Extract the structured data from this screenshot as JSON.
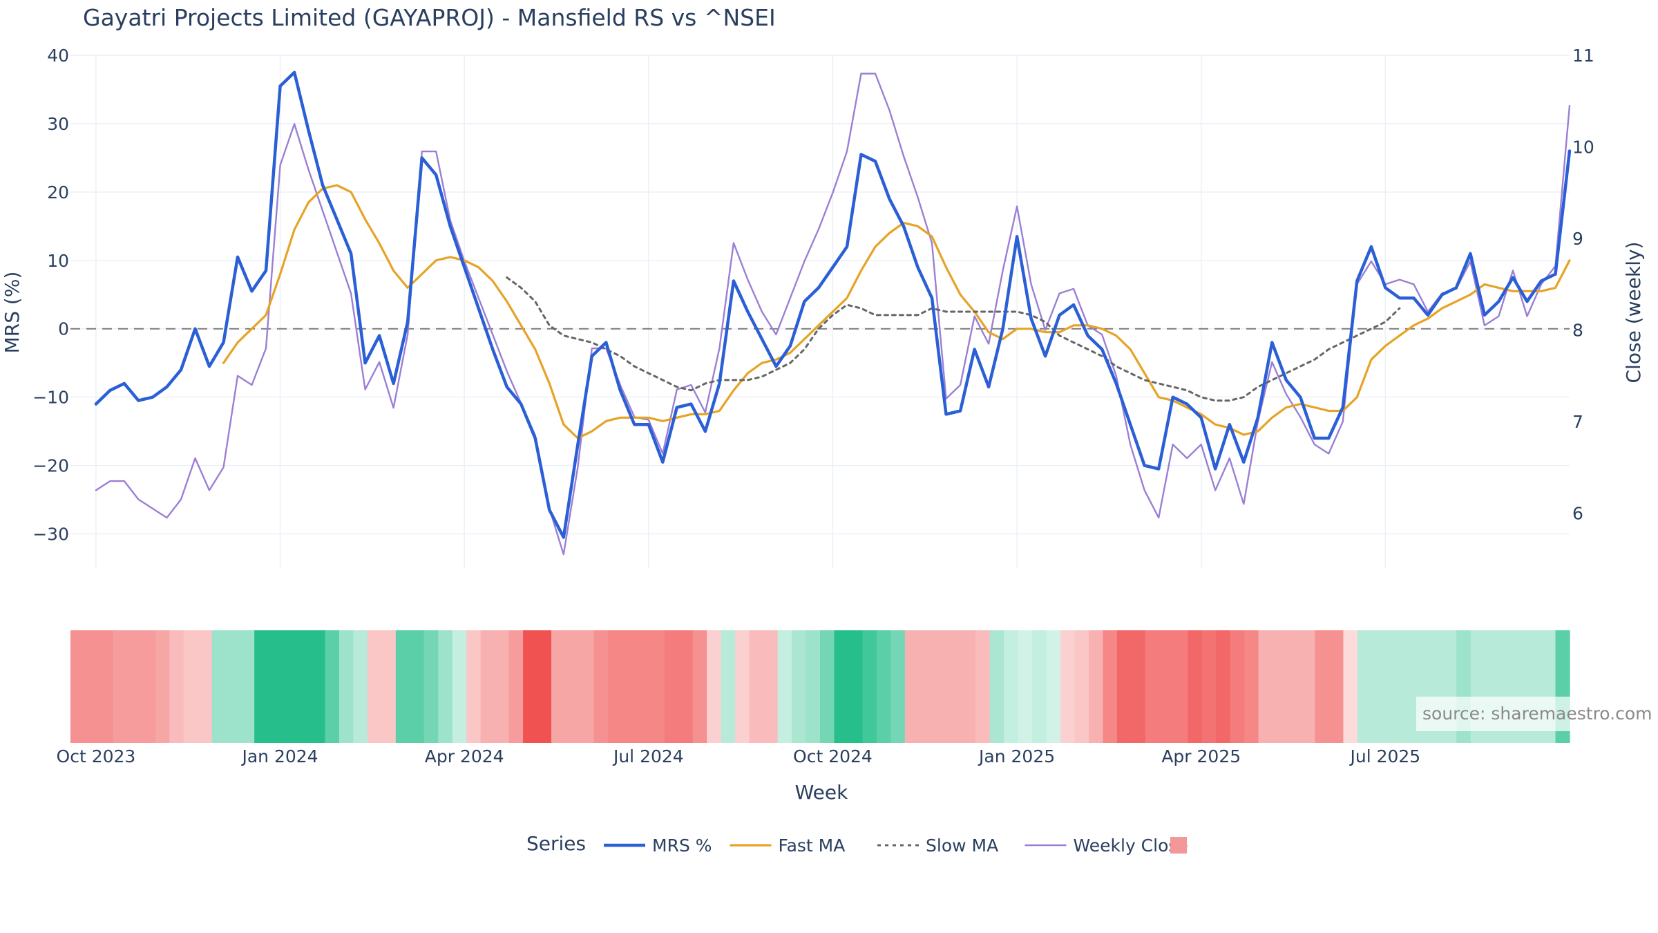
{
  "chart_data": {
    "type": "line",
    "title": "Gayatri Projects Limited (GAYAPROJ) - Mansfield RS vs ^NSEI",
    "xlabel": "Week",
    "ylabel_left": "MRS (%)",
    "ylabel_right": "Close (weekly)",
    "ylim_left": [
      -35,
      40
    ],
    "ylim_right": [
      5.4,
      11
    ],
    "yticks_left": [
      40,
      30,
      20,
      10,
      0,
      -10,
      -20,
      -30
    ],
    "yticks_left_labels": [
      "40",
      "30",
      "20",
      "10",
      "0",
      "−10",
      "−20",
      "−30"
    ],
    "yticks_right": [
      11,
      10,
      9,
      8,
      7,
      6
    ],
    "yticks_right_labels": [
      "11",
      "10",
      "9",
      "8",
      "7",
      "6"
    ],
    "x_ticks": [
      {
        "label": "Oct 2023",
        "week": 0
      },
      {
        "label": "Jan 2024",
        "week": 13
      },
      {
        "label": "Apr 2024",
        "week": 26
      },
      {
        "label": "Jul 2024",
        "week": 39
      },
      {
        "label": "Oct 2024",
        "week": 52
      },
      {
        "label": "Jan 2025",
        "week": 65
      },
      {
        "label": "Apr 2025",
        "week": 78
      },
      {
        "label": "Jul 2025",
        "week": 91
      }
    ],
    "x_range_weeks": [
      -1.8,
      104
    ],
    "grid": true,
    "zero_line": true,
    "legend_position": "bottom",
    "legend_title": "Series",
    "series": [
      {
        "name": "MRS %",
        "color": "#2b5fd6",
        "axis": "left",
        "values": [
          -11,
          -9,
          -8,
          -10.5,
          -10,
          -8.5,
          -6,
          0,
          -5.5,
          -2,
          10.5,
          5.5,
          8.5,
          35.5,
          37.5,
          29,
          21,
          16,
          11,
          -5,
          -1,
          -8,
          1,
          25,
          22.5,
          15,
          9,
          3,
          -3,
          -8.5,
          -11,
          -16,
          -26.5,
          -30.5,
          -17,
          -4,
          -2,
          -9,
          -14,
          -14,
          -19.5,
          -11.5,
          -11,
          -15,
          -8,
          7,
          2.5,
          -1.5,
          -5.5,
          -2.5,
          4,
          6,
          9,
          12,
          25.5,
          24.5,
          19,
          15,
          9,
          4.5,
          -12.5,
          -12,
          -3,
          -8.5,
          0,
          13.5,
          1.5,
          -4,
          2,
          3.5,
          -1,
          -3,
          -8,
          -14,
          -20,
          -20.5,
          -10,
          -11,
          -13,
          -20.5,
          -14,
          -19.5,
          -13,
          -2,
          -7.5,
          -10,
          -16,
          -16,
          -11.5,
          7,
          12,
          6,
          4.5,
          4.5,
          2,
          5,
          6,
          11,
          2,
          4,
          7.5,
          4,
          7,
          8,
          26
        ]
      },
      {
        "name": "Fast MA",
        "color": "#e6a325",
        "axis": "left",
        "values": [
          null,
          null,
          null,
          null,
          null,
          null,
          null,
          null,
          null,
          -5,
          -2,
          0,
          2,
          8,
          14.5,
          18.5,
          20.5,
          21,
          20,
          16,
          12.5,
          8.5,
          6,
          8,
          10,
          10.5,
          10,
          9,
          7,
          4,
          0.5,
          -3,
          -8,
          -14,
          -16,
          -15,
          -13.5,
          -13,
          -13,
          -13,
          -13.5,
          -13,
          -12.5,
          -12.5,
          -12,
          -9,
          -6.5,
          -5,
          -4.5,
          -3.5,
          -1.5,
          0.5,
          2.5,
          4.5,
          8.5,
          12,
          14,
          15.5,
          15,
          13.5,
          9,
          5,
          2.5,
          -0.5,
          -1.5,
          0,
          0,
          -0.5,
          -0.5,
          0.5,
          0.5,
          0,
          -1,
          -3,
          -6.5,
          -10,
          -10.5,
          -11.5,
          -12.5,
          -14,
          -14.5,
          -15.5,
          -15,
          -13,
          -11.5,
          -11,
          -11.5,
          -12,
          -12,
          -10,
          -4.5,
          -2.5,
          -1,
          0.5,
          1.5,
          3,
          4,
          5,
          6.5,
          6,
          5.5,
          5.5,
          5.5,
          6,
          10
        ]
      },
      {
        "name": "Slow MA",
        "color": "#666666",
        "axis": "left",
        "dash": "dotted",
        "values": [
          null,
          null,
          null,
          null,
          null,
          null,
          null,
          null,
          null,
          null,
          null,
          null,
          null,
          null,
          null,
          null,
          null,
          null,
          null,
          null,
          null,
          null,
          null,
          null,
          null,
          null,
          null,
          null,
          null,
          7.5,
          6,
          4,
          0.5,
          -1,
          -1.5,
          -2,
          -3,
          -4,
          -5.5,
          -6.5,
          -7.5,
          -8.5,
          -9,
          -8,
          -7.5,
          -7.5,
          -7.5,
          -7,
          -6,
          -5,
          -3,
          0,
          2,
          3.5,
          3,
          2,
          2,
          2,
          2,
          3,
          2.5,
          2.5,
          2.5,
          2.5,
          2.5,
          2.5,
          2,
          1,
          -1,
          -2,
          -3,
          -4,
          -5.5,
          -6.5,
          -7.5,
          -8,
          -8.5,
          -9,
          -10,
          -10.5,
          -10.5,
          -10,
          -8.5,
          -7.5,
          -6.5,
          -5.5,
          -4.5,
          -3,
          -2,
          -1,
          0,
          1,
          3
        ]
      },
      {
        "name": "Weekly Close",
        "color": "#9b7fd4",
        "axis": "right",
        "values": [
          6.25,
          6.35,
          6.35,
          6.15,
          6.05,
          5.95,
          6.15,
          6.6,
          6.25,
          6.5,
          7.5,
          7.4,
          7.8,
          9.8,
          10.25,
          9.75,
          9.3,
          8.85,
          8.4,
          7.35,
          7.65,
          7.15,
          7.95,
          9.95,
          9.95,
          9.2,
          8.75,
          8.35,
          7.95,
          7.55,
          7.2,
          6.85,
          6.05,
          5.55,
          6.5,
          7.8,
          7.8,
          7.4,
          7.05,
          7.02,
          6.65,
          7.35,
          7.4,
          7.1,
          7.8,
          8.95,
          8.55,
          8.2,
          7.95,
          8.35,
          8.75,
          9.1,
          9.5,
          9.95,
          10.8,
          10.8,
          10.4,
          9.9,
          9.45,
          8.95,
          7.25,
          7.4,
          8.15,
          7.85,
          8.65,
          9.35,
          8.5,
          8.0,
          8.4,
          8.45,
          8.05,
          7.95,
          7.5,
          6.75,
          6.25,
          5.95,
          6.75,
          6.6,
          6.75,
          6.25,
          6.6,
          6.1,
          7.0,
          7.65,
          7.3,
          7.05,
          6.75,
          6.65,
          7.0,
          8.5,
          8.75,
          8.5,
          8.55,
          8.5,
          8.2,
          8.4,
          8.45,
          8.75,
          8.05,
          8.15,
          8.65,
          8.15,
          8.5,
          8.7,
          10.45
        ]
      }
    ],
    "heatmap_strip": {
      "title": "",
      "values": [
        -8,
        -8,
        -8,
        -7,
        -7,
        -7,
        -6,
        -4,
        -3,
        -3,
        5,
        5,
        5,
        14,
        14,
        14,
        14,
        14,
        10,
        5,
        3,
        -3,
        -3,
        10,
        10,
        8,
        5,
        2,
        -3,
        -5,
        -5,
        -7,
        -14,
        -14,
        -6,
        -6,
        -6,
        -8,
        -9,
        -9,
        -9,
        -9,
        -10,
        -10,
        -8,
        -2,
        3,
        -2,
        -4,
        -4,
        2,
        4,
        5,
        8,
        14,
        14,
        12,
        10,
        8,
        -5,
        -5,
        -5,
        -5,
        -5,
        -4,
        4,
        2,
        1,
        2,
        1,
        -2,
        -3,
        -5,
        -9,
        -12,
        -12,
        -10,
        -10,
        -10,
        -12,
        -11,
        -12,
        -10,
        -9,
        -5,
        -5,
        -5,
        -5,
        -8,
        -8,
        -1,
        3,
        3,
        3,
        3,
        3,
        3,
        3,
        5,
        3,
        3,
        3,
        3,
        3,
        3,
        10
      ],
      "legend_color": "#f29898"
    },
    "annotation": "source: sharemaestro.com"
  }
}
